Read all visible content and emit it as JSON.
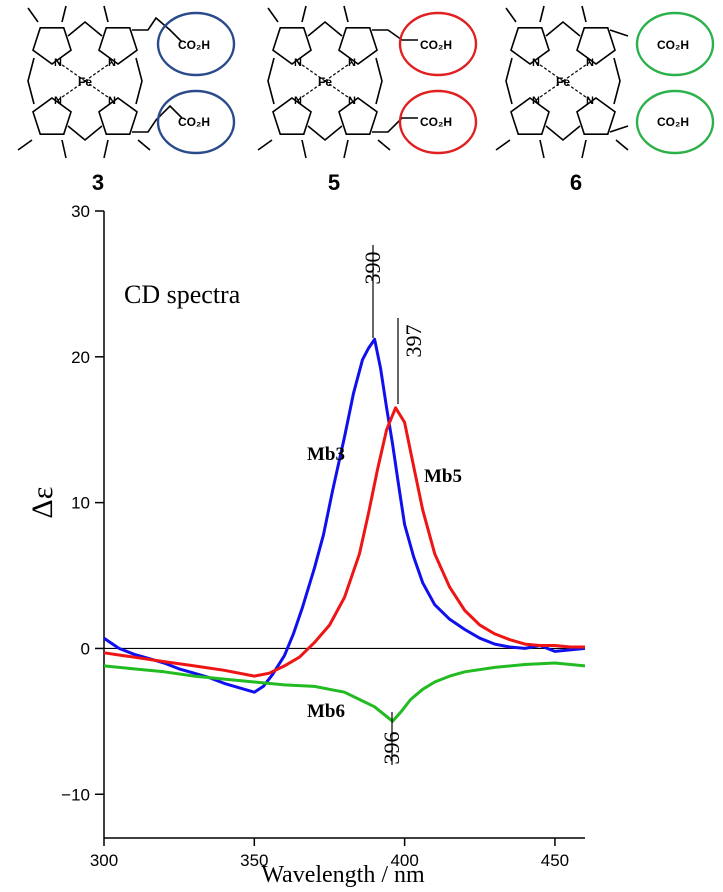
{
  "molecules": [
    {
      "id": "3",
      "group_top": "CO₂H",
      "group_bottom": "CO₂H",
      "ring_color": "#2b4a8c",
      "style": "propionate"
    },
    {
      "id": "5",
      "group_top": "CO₂H",
      "group_bottom": "CO₂H",
      "ring_color": "#e02020",
      "style": "acetate"
    },
    {
      "id": "6",
      "group_top": "CO₂H",
      "group_bottom": "CO₂H",
      "ring_color": "#2cb04a",
      "style": "carboxyl"
    }
  ],
  "atoms": {
    "metal": "Fe",
    "nitrogen": "N"
  },
  "chart_data": {
    "type": "line",
    "annotation": "CD spectra",
    "xlabel": "Wavelength / nm",
    "ylabel": "Δε",
    "xlim": [
      300,
      460
    ],
    "ylim": [
      -13,
      30
    ],
    "xticks": [
      300,
      350,
      400,
      450
    ],
    "yticks": [
      -10,
      0,
      10,
      20,
      30
    ],
    "zero_line": true,
    "peak_labels": [
      {
        "text": "390",
        "x": 390,
        "y": 21.2
      },
      {
        "text": "397",
        "x": 397,
        "y": 16.5
      },
      {
        "text": "396",
        "x": 396,
        "y": -5.0
      }
    ],
    "series": [
      {
        "name": "Mb3",
        "color": "#1010ee",
        "x": [
          300,
          305,
          310,
          315,
          320,
          325,
          330,
          335,
          340,
          345,
          350,
          353,
          356,
          360,
          363,
          366,
          370,
          373,
          376,
          380,
          383,
          386,
          388,
          390,
          392,
          394,
          396,
          398,
          400,
          403,
          406,
          410,
          415,
          420,
          425,
          430,
          435,
          440,
          445,
          450,
          455,
          460
        ],
        "y": [
          0.7,
          0.0,
          -0.4,
          -0.7,
          -1.0,
          -1.4,
          -1.7,
          -2.0,
          -2.4,
          -2.7,
          -3.0,
          -2.6,
          -1.8,
          -0.5,
          1.0,
          2.8,
          5.5,
          7.8,
          10.8,
          14.5,
          17.5,
          19.8,
          20.6,
          21.2,
          19.2,
          16.5,
          14.0,
          11.2,
          8.5,
          6.3,
          4.5,
          3.0,
          2.0,
          1.3,
          0.7,
          0.3,
          0.1,
          0.0,
          0.2,
          -0.2,
          -0.1,
          0.0
        ]
      },
      {
        "name": "Mb5",
        "color": "#ee1515",
        "x": [
          300,
          310,
          320,
          330,
          340,
          350,
          355,
          360,
          365,
          370,
          375,
          380,
          385,
          388,
          391,
          394,
          397,
          400,
          403,
          406,
          410,
          415,
          420,
          425,
          430,
          435,
          440,
          445,
          450,
          455,
          460
        ],
        "y": [
          -0.3,
          -0.6,
          -0.9,
          -1.2,
          -1.5,
          -1.9,
          -1.7,
          -1.2,
          -0.6,
          0.4,
          1.6,
          3.5,
          6.5,
          9.3,
          12.3,
          15.0,
          16.5,
          15.5,
          12.5,
          9.5,
          6.5,
          4.2,
          2.6,
          1.6,
          1.0,
          0.6,
          0.3,
          0.2,
          0.2,
          0.1,
          0.1
        ]
      },
      {
        "name": "Mb6",
        "color": "#22bb22",
        "x": [
          300,
          310,
          320,
          330,
          340,
          350,
          360,
          370,
          375,
          380,
          385,
          390,
          393,
          396,
          399,
          402,
          406,
          410,
          415,
          420,
          430,
          440,
          450,
          460
        ],
        "y": [
          -1.2,
          -1.4,
          -1.6,
          -1.9,
          -2.1,
          -2.3,
          -2.5,
          -2.6,
          -2.8,
          -3.0,
          -3.5,
          -4.0,
          -4.5,
          -5.0,
          -4.3,
          -3.5,
          -2.8,
          -2.3,
          -1.9,
          -1.6,
          -1.3,
          -1.1,
          -1.0,
          -1.2
        ]
      }
    ]
  }
}
